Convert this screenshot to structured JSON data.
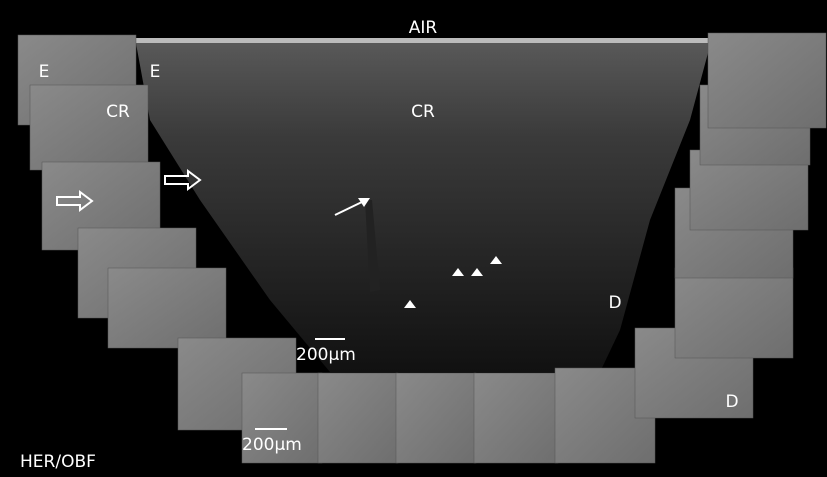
{
  "labels": {
    "air": "AIR",
    "e_left": "E",
    "e_right": "E",
    "cr_left": "CR",
    "cr_center": "CR",
    "d_center": "D",
    "d_right": "D",
    "scale_top": "200μm",
    "scale_bottom": "200μm",
    "source": "HER/OBF"
  }
}
